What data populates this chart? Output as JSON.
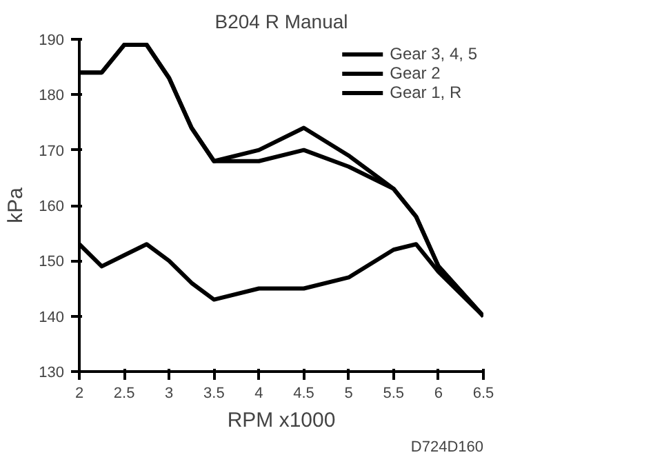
{
  "chart_data": {
    "type": "line",
    "title": "B204 R Manual",
    "xlabel": "RPM x1000",
    "ylabel": "kPa",
    "x": [
      2,
      2.25,
      2.5,
      2.75,
      3,
      3.25,
      3.5,
      4,
      4.5,
      5,
      5.5,
      5.75,
      6,
      6.5
    ],
    "series": [
      {
        "name": "Gear 3, 4, 5",
        "color": "#000000",
        "values": [
          184,
          184,
          189,
          189,
          183,
          174,
          168,
          170,
          174,
          169,
          163,
          158,
          149,
          140
        ]
      },
      {
        "name": "Gear 2",
        "color": "#000000",
        "values": [
          184,
          184,
          189,
          189,
          183,
          174,
          168,
          168,
          170,
          167,
          163,
          158,
          149,
          140
        ]
      },
      {
        "name": "Gear 1, R",
        "color": "#000000",
        "values": [
          153,
          149,
          151,
          153,
          150,
          146,
          143,
          145,
          145,
          147,
          152,
          153,
          148,
          140
        ]
      }
    ],
    "xlim": [
      2,
      6.5
    ],
    "xticks": [
      2,
      2.5,
      3,
      3.5,
      4,
      4.5,
      5,
      5.5,
      6,
      6.5
    ],
    "ylim": [
      130,
      190
    ],
    "yticks": [
      130,
      140,
      150,
      160,
      170,
      180,
      190
    ],
    "grid": false,
    "legend": "top right",
    "marker": "none",
    "line_style": "solid",
    "annotations": [
      "D724D160"
    ]
  }
}
